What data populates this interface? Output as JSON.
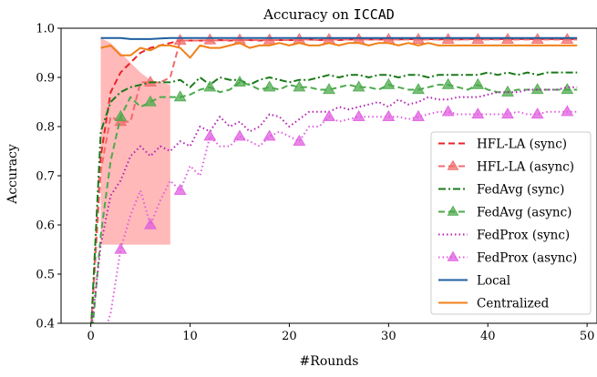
{
  "chart_data": {
    "type": "line",
    "title_prefix": "Accuracy on ",
    "title_dataset": "ICCAD",
    "xlabel": "#Rounds",
    "ylabel": "Accuracy",
    "xlim": [
      -3,
      51
    ],
    "ylim": [
      0.4,
      1.0
    ],
    "xticks": [
      0,
      10,
      20,
      30,
      40,
      50
    ],
    "yticks": [
      0.4,
      0.5,
      0.6,
      0.7,
      0.8,
      0.9,
      1.0
    ],
    "xtick_labels": [
      "0",
      "10",
      "20",
      "30",
      "40",
      "50"
    ],
    "ytick_labels": [
      "0.4",
      "0.5",
      "0.6",
      "0.7",
      "0.8",
      "0.9",
      "1.0"
    ],
    "grid": false,
    "legend_position": "lower-right",
    "shaded_region": {
      "x": [
        1,
        2,
        3,
        4,
        5,
        6,
        7,
        8
      ],
      "upper": [
        0.98,
        0.97,
        0.95,
        0.93,
        0.91,
        0.895,
        0.89,
        0.885
      ],
      "lower": [
        0.56,
        0.56,
        0.56,
        0.56,
        0.56,
        0.56,
        0.56,
        0.56
      ],
      "color": "#ff8080",
      "opacity": 0.55
    },
    "series": [
      {
        "name": "HFL-LA (sync)",
        "color": "#e8232a",
        "style": "dashed",
        "marker": null,
        "x": [
          0,
          1,
          2,
          3,
          4,
          5,
          6,
          7,
          8,
          9,
          10,
          11,
          12,
          13,
          14,
          15,
          16,
          17,
          18,
          19,
          20,
          21,
          22,
          23,
          24,
          25,
          26,
          27,
          28,
          29,
          30,
          31,
          32,
          33,
          34,
          35,
          36,
          37,
          38,
          39,
          40,
          41,
          42,
          43,
          44,
          45,
          46,
          47,
          48,
          49
        ],
        "values": [
          0.38,
          0.74,
          0.87,
          0.91,
          0.93,
          0.95,
          0.96,
          0.965,
          0.97,
          0.975,
          0.975,
          0.975,
          0.975,
          0.976,
          0.975,
          0.976,
          0.976,
          0.975,
          0.976,
          0.976,
          0.976,
          0.976,
          0.977,
          0.976,
          0.977,
          0.976,
          0.977,
          0.977,
          0.977,
          0.977,
          0.977,
          0.977,
          0.978,
          0.977,
          0.978,
          0.977,
          0.978,
          0.977,
          0.978,
          0.978,
          0.978,
          0.978,
          0.978,
          0.978,
          0.978,
          0.978,
          0.978,
          0.978,
          0.978,
          0.978
        ]
      },
      {
        "name": "HFL-LA (async)",
        "color": "#f26b6b",
        "style": "dashed",
        "marker": "triangle",
        "x": [
          0,
          1,
          2,
          3,
          4,
          5,
          6,
          7,
          8,
          9,
          10,
          11,
          12,
          13,
          14,
          15,
          16,
          17,
          18,
          19,
          20,
          21,
          22,
          23,
          24,
          25,
          26,
          27,
          28,
          29,
          30,
          31,
          32,
          33,
          34,
          35,
          36,
          37,
          38,
          39,
          40,
          41,
          42,
          43,
          44,
          45,
          46,
          47,
          48,
          49
        ],
        "values": [
          0.38,
          0.71,
          0.82,
          0.81,
          0.81,
          0.89,
          0.89,
          0.89,
          0.9,
          0.975,
          0.975,
          0.975,
          0.976,
          0.975,
          0.976,
          0.976,
          0.976,
          0.976,
          0.976,
          0.976,
          0.976,
          0.977,
          0.977,
          0.976,
          0.977,
          0.977,
          0.977,
          0.977,
          0.977,
          0.977,
          0.977,
          0.977,
          0.977,
          0.977,
          0.977,
          0.977,
          0.977,
          0.977,
          0.977,
          0.977,
          0.977,
          0.977,
          0.977,
          0.977,
          0.977,
          0.977,
          0.977,
          0.977,
          0.977,
          0.977
        ],
        "marker_x": [
          3,
          6,
          9,
          12,
          15,
          18,
          21,
          24,
          27,
          30,
          33,
          36,
          39,
          42,
          45,
          48
        ]
      },
      {
        "name": "FedAvg (sync)",
        "color": "#1a7a1a",
        "style": "dashdot",
        "marker": null,
        "x": [
          0,
          1,
          2,
          3,
          4,
          5,
          6,
          7,
          8,
          9,
          10,
          11,
          12,
          13,
          14,
          15,
          16,
          17,
          18,
          19,
          20,
          21,
          22,
          23,
          24,
          25,
          26,
          27,
          28,
          29,
          30,
          31,
          32,
          33,
          34,
          35,
          36,
          37,
          38,
          39,
          40,
          41,
          42,
          43,
          44,
          45,
          46,
          47,
          48,
          49
        ],
        "values": [
          0.38,
          0.79,
          0.85,
          0.87,
          0.88,
          0.885,
          0.89,
          0.89,
          0.89,
          0.895,
          0.88,
          0.9,
          0.885,
          0.9,
          0.895,
          0.895,
          0.885,
          0.895,
          0.9,
          0.895,
          0.89,
          0.895,
          0.895,
          0.9,
          0.905,
          0.9,
          0.905,
          0.905,
          0.9,
          0.905,
          0.905,
          0.9,
          0.905,
          0.905,
          0.9,
          0.905,
          0.905,
          0.905,
          0.905,
          0.905,
          0.91,
          0.905,
          0.91,
          0.905,
          0.91,
          0.905,
          0.91,
          0.91,
          0.91,
          0.91
        ]
      },
      {
        "name": "FedAvg (async)",
        "color": "#4caa4c",
        "style": "dashed",
        "marker": "triangle",
        "x": [
          0,
          1,
          2,
          3,
          4,
          5,
          6,
          7,
          8,
          9,
          10,
          11,
          12,
          13,
          14,
          15,
          16,
          17,
          18,
          19,
          20,
          21,
          22,
          23,
          24,
          25,
          26,
          27,
          28,
          29,
          30,
          31,
          32,
          33,
          34,
          35,
          36,
          37,
          38,
          39,
          40,
          41,
          42,
          43,
          44,
          45,
          46,
          47,
          48,
          49
        ],
        "values": [
          0.35,
          0.58,
          0.73,
          0.82,
          0.86,
          0.84,
          0.85,
          0.86,
          0.86,
          0.86,
          0.865,
          0.875,
          0.88,
          0.87,
          0.875,
          0.89,
          0.885,
          0.875,
          0.88,
          0.875,
          0.885,
          0.88,
          0.88,
          0.875,
          0.875,
          0.88,
          0.885,
          0.88,
          0.88,
          0.875,
          0.885,
          0.88,
          0.875,
          0.875,
          0.88,
          0.885,
          0.885,
          0.88,
          0.875,
          0.885,
          0.875,
          0.87,
          0.87,
          0.875,
          0.875,
          0.875,
          0.875,
          0.875,
          0.875,
          0.875
        ],
        "marker_x": [
          3,
          6,
          9,
          12,
          15,
          18,
          21,
          24,
          27,
          30,
          33,
          36,
          39,
          42,
          45,
          48
        ]
      },
      {
        "name": "FedProx (sync)",
        "color": "#b21fb2",
        "style": "dotted",
        "marker": null,
        "x": [
          0,
          1,
          2,
          3,
          4,
          5,
          6,
          7,
          8,
          9,
          10,
          11,
          12,
          13,
          14,
          15,
          16,
          17,
          18,
          19,
          20,
          21,
          22,
          23,
          24,
          25,
          26,
          27,
          28,
          29,
          30,
          31,
          32,
          33,
          34,
          35,
          36,
          37,
          38,
          39,
          40,
          41,
          42,
          43,
          44,
          45,
          46,
          47,
          48,
          49
        ],
        "values": [
          0.38,
          0.56,
          0.66,
          0.69,
          0.74,
          0.76,
          0.74,
          0.76,
          0.75,
          0.77,
          0.76,
          0.8,
          0.79,
          0.82,
          0.8,
          0.81,
          0.79,
          0.8,
          0.825,
          0.82,
          0.8,
          0.815,
          0.83,
          0.83,
          0.83,
          0.84,
          0.835,
          0.84,
          0.845,
          0.85,
          0.84,
          0.855,
          0.845,
          0.85,
          0.86,
          0.855,
          0.855,
          0.86,
          0.86,
          0.86,
          0.865,
          0.87,
          0.87,
          0.87,
          0.875,
          0.875,
          0.875,
          0.875,
          0.88,
          0.88
        ]
      },
      {
        "name": "FedProx (async)",
        "color": "#e05ce0",
        "style": "dotted",
        "marker": "triangle",
        "x": [
          0,
          1,
          2,
          3,
          4,
          5,
          6,
          7,
          8,
          9,
          10,
          11,
          12,
          13,
          14,
          15,
          16,
          17,
          18,
          19,
          20,
          21,
          22,
          23,
          24,
          25,
          26,
          27,
          28,
          29,
          30,
          31,
          32,
          33,
          34,
          35,
          36,
          37,
          38,
          39,
          40,
          41,
          42,
          43,
          44,
          45,
          46,
          47,
          48,
          49
        ],
        "values": [
          0.32,
          0.36,
          0.42,
          0.55,
          0.62,
          0.67,
          0.6,
          0.65,
          0.69,
          0.67,
          0.72,
          0.7,
          0.78,
          0.76,
          0.76,
          0.78,
          0.77,
          0.76,
          0.78,
          0.79,
          0.78,
          0.77,
          0.8,
          0.8,
          0.82,
          0.81,
          0.815,
          0.82,
          0.82,
          0.82,
          0.82,
          0.82,
          0.815,
          0.82,
          0.825,
          0.83,
          0.83,
          0.825,
          0.825,
          0.825,
          0.825,
          0.825,
          0.825,
          0.83,
          0.825,
          0.825,
          0.83,
          0.83,
          0.83,
          0.83
        ],
        "marker_x": [
          3,
          6,
          9,
          12,
          15,
          18,
          21,
          24,
          27,
          30,
          33,
          36,
          39,
          42,
          45,
          48
        ]
      },
      {
        "name": "Local",
        "color": "#1f5f9f",
        "style": "solid",
        "marker": null,
        "x": [
          1,
          2,
          3,
          4,
          5,
          6,
          7,
          8,
          9,
          10,
          11,
          12,
          13,
          14,
          15,
          16,
          17,
          18,
          19,
          20,
          21,
          22,
          23,
          24,
          25,
          26,
          27,
          28,
          29,
          30,
          31,
          32,
          33,
          34,
          35,
          36,
          37,
          38,
          39,
          40,
          41,
          42,
          43,
          44,
          45,
          46,
          47,
          48,
          49
        ],
        "values": [
          0.98,
          0.98,
          0.98,
          0.978,
          0.978,
          0.978,
          0.979,
          0.98,
          0.98,
          0.98,
          0.98,
          0.98,
          0.98,
          0.98,
          0.98,
          0.98,
          0.98,
          0.98,
          0.98,
          0.98,
          0.98,
          0.98,
          0.98,
          0.98,
          0.98,
          0.98,
          0.98,
          0.98,
          0.98,
          0.98,
          0.98,
          0.98,
          0.98,
          0.98,
          0.98,
          0.98,
          0.98,
          0.98,
          0.98,
          0.98,
          0.98,
          0.98,
          0.98,
          0.98,
          0.98,
          0.98,
          0.98,
          0.98,
          0.98
        ]
      },
      {
        "name": "Centralized",
        "color": "#f08018",
        "style": "solid",
        "marker": null,
        "x": [
          1,
          2,
          3,
          4,
          5,
          6,
          7,
          8,
          9,
          10,
          11,
          12,
          13,
          14,
          15,
          16,
          17,
          18,
          19,
          20,
          21,
          22,
          23,
          24,
          25,
          26,
          27,
          28,
          29,
          30,
          31,
          32,
          33,
          34,
          35,
          36,
          37,
          38,
          39,
          40,
          41,
          42,
          43,
          44,
          45,
          46,
          47,
          48,
          49
        ],
        "values": [
          0.96,
          0.965,
          0.945,
          0.945,
          0.96,
          0.955,
          0.965,
          0.965,
          0.96,
          0.94,
          0.965,
          0.96,
          0.96,
          0.965,
          0.97,
          0.96,
          0.965,
          0.965,
          0.97,
          0.965,
          0.97,
          0.965,
          0.965,
          0.97,
          0.965,
          0.97,
          0.97,
          0.965,
          0.97,
          0.97,
          0.965,
          0.97,
          0.965,
          0.97,
          0.965,
          0.965,
          0.965,
          0.965,
          0.965,
          0.965,
          0.965,
          0.965,
          0.965,
          0.965,
          0.965,
          0.965,
          0.965,
          0.965,
          0.965
        ]
      }
    ]
  }
}
